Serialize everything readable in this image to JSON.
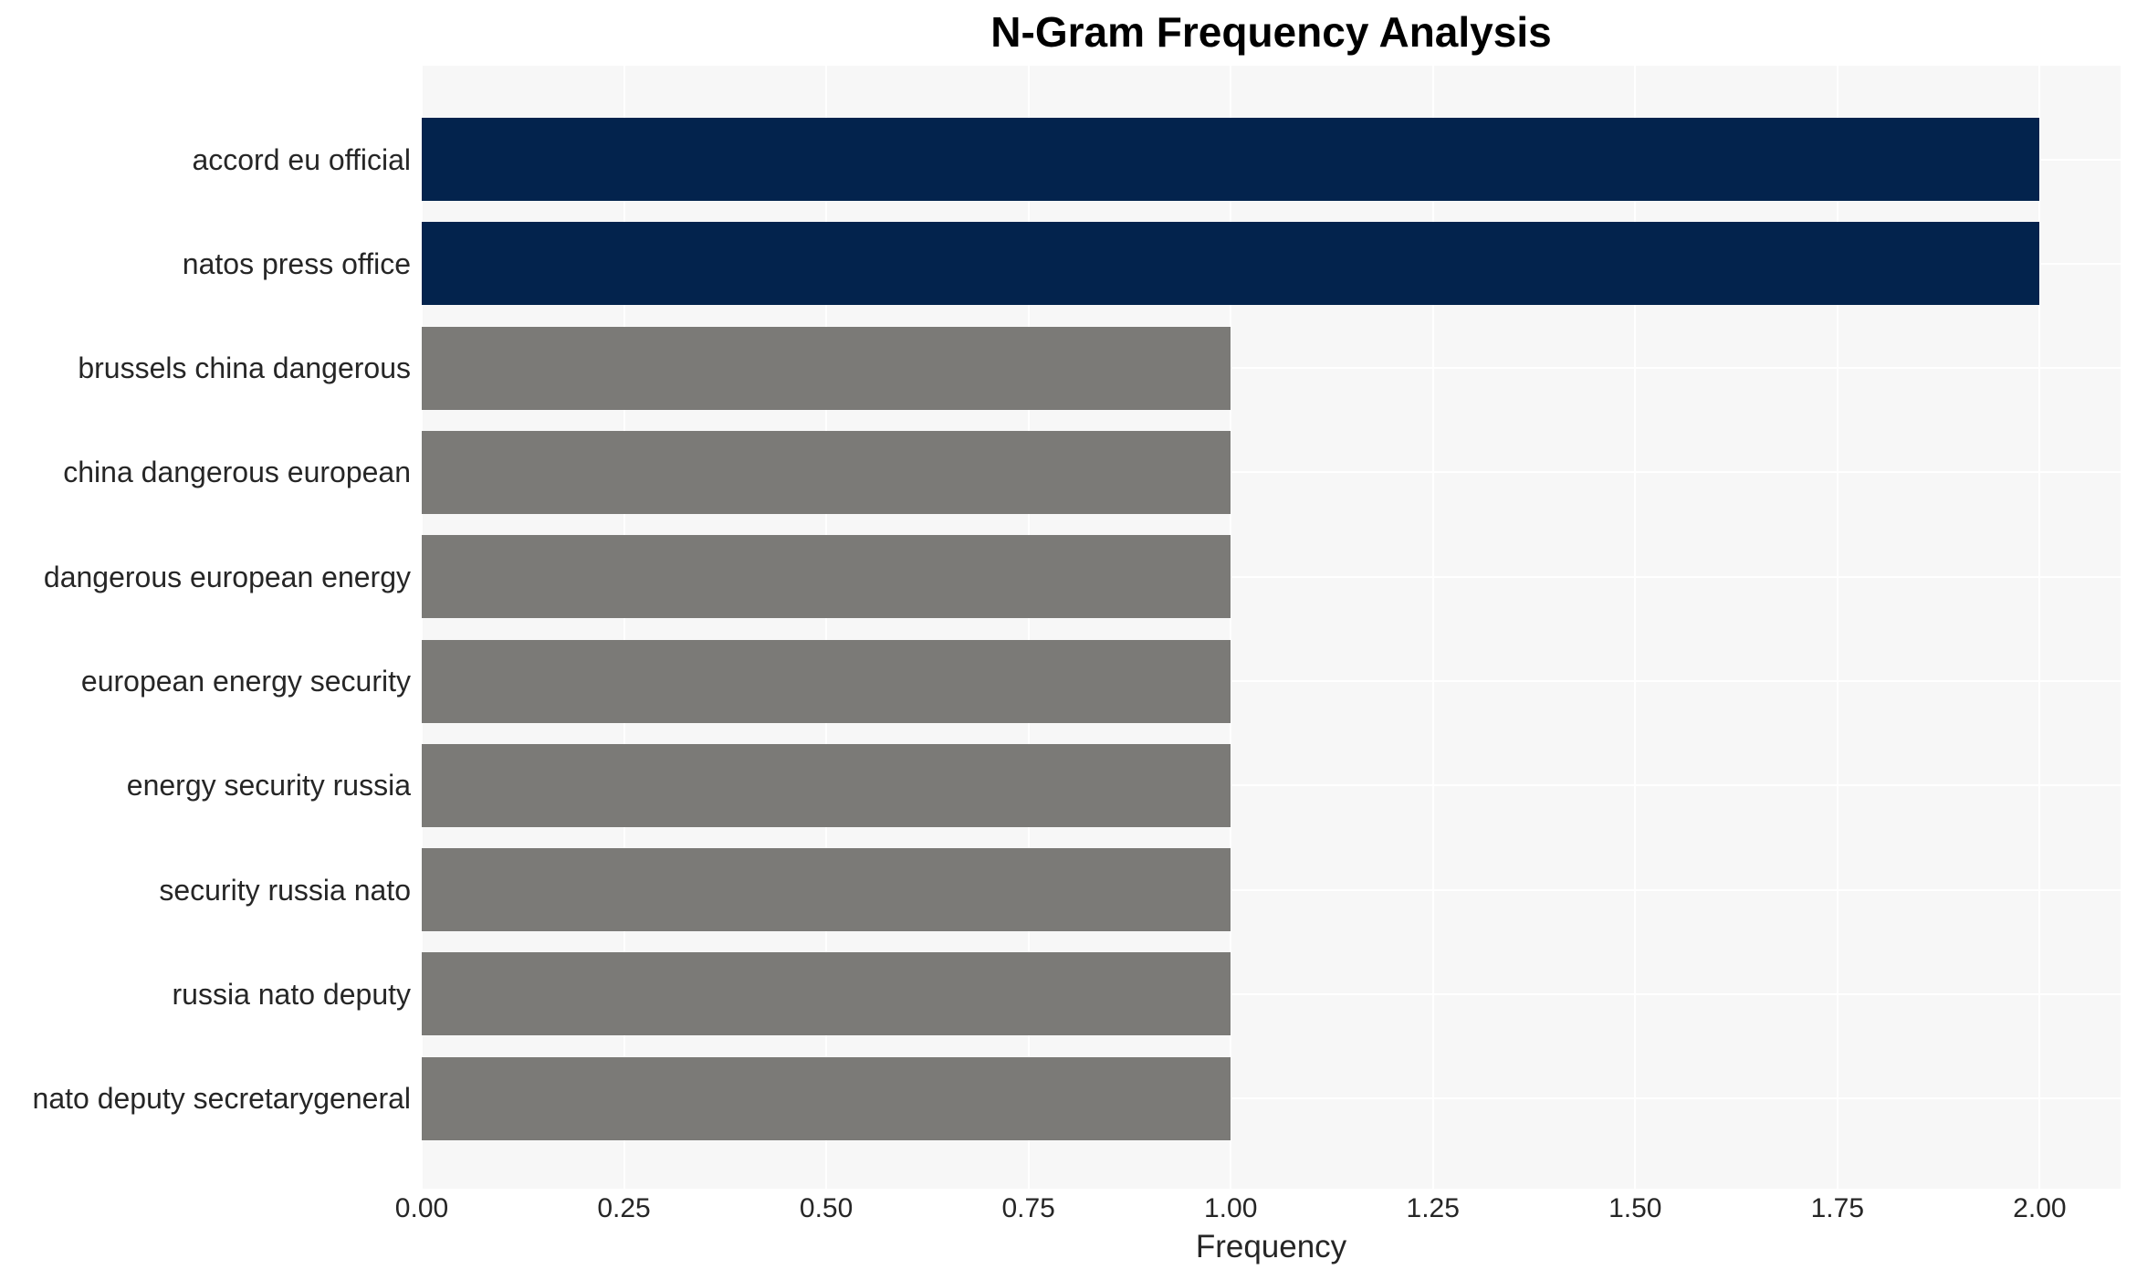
{
  "chart_data": {
    "type": "bar",
    "orientation": "horizontal",
    "title": "N-Gram Frequency Analysis",
    "xlabel": "Frequency",
    "ylabel": "",
    "categories": [
      "accord eu official",
      "natos press office",
      "brussels china dangerous",
      "china dangerous european",
      "dangerous european energy",
      "european energy security",
      "energy security russia",
      "security russia nato",
      "russia nato deputy",
      "nato deputy secretarygeneral"
    ],
    "values": [
      2,
      2,
      1,
      1,
      1,
      1,
      1,
      1,
      1,
      1
    ],
    "bar_roles": [
      "highlight",
      "highlight",
      "default",
      "default",
      "default",
      "default",
      "default",
      "default",
      "default",
      "default"
    ],
    "xticks": [
      0,
      0.25,
      0.5,
      0.75,
      1,
      1.25,
      1.5,
      1.75,
      2
    ],
    "xtick_labels": [
      "0.00",
      "0.25",
      "0.50",
      "0.75",
      "1.00",
      "1.25",
      "1.50",
      "1.75",
      "2.00"
    ],
    "xlim": [
      0,
      2.1
    ],
    "grid": true,
    "legend": false,
    "colors": {
      "highlight_bar": "#03234d",
      "default_bar": "#7b7a77",
      "plot_background": "#f7f7f7",
      "gridline": "#ffffff",
      "tick_text": "#262626",
      "title_text": "#000000"
    }
  }
}
